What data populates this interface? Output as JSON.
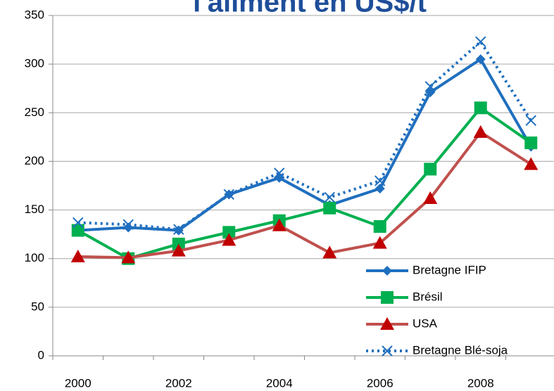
{
  "chart_data": {
    "type": "line",
    "title": "l'aliment en US$/t",
    "categories": [
      "2000",
      null,
      "2002",
      null,
      "2004",
      null,
      "2006",
      null,
      "2008",
      null
    ],
    "series": [
      {
        "name": "Bretagne IFIP",
        "color": "#1f6fbf",
        "marker": "diamond",
        "dash": "solid",
        "values": [
          129,
          132,
          129,
          166,
          183,
          155,
          172,
          271,
          305,
          215
        ]
      },
      {
        "name": "Brésil",
        "color": "#00b050",
        "marker": "square",
        "dash": "solid",
        "values": [
          129,
          100,
          115,
          127,
          139,
          152,
          133,
          192,
          255,
          219
        ]
      },
      {
        "name": "USA",
        "color": "#c0504d",
        "marker": "triangle",
        "dash": "solid",
        "values": [
          102,
          101,
          108,
          119,
          134,
          106,
          116,
          162,
          230,
          197
        ]
      },
      {
        "name": "Bretagne Blé-soja",
        "color": "#1f6fbf",
        "marker": "x",
        "dash": "dotted",
        "values": [
          137,
          135,
          130,
          166,
          188,
          163,
          180,
          277,
          323,
          242
        ]
      }
    ],
    "ylim": [
      0,
      350
    ],
    "yticks": [
      0,
      50,
      100,
      150,
      200,
      250,
      300,
      350
    ],
    "grid": true,
    "legend": "lower right"
  }
}
